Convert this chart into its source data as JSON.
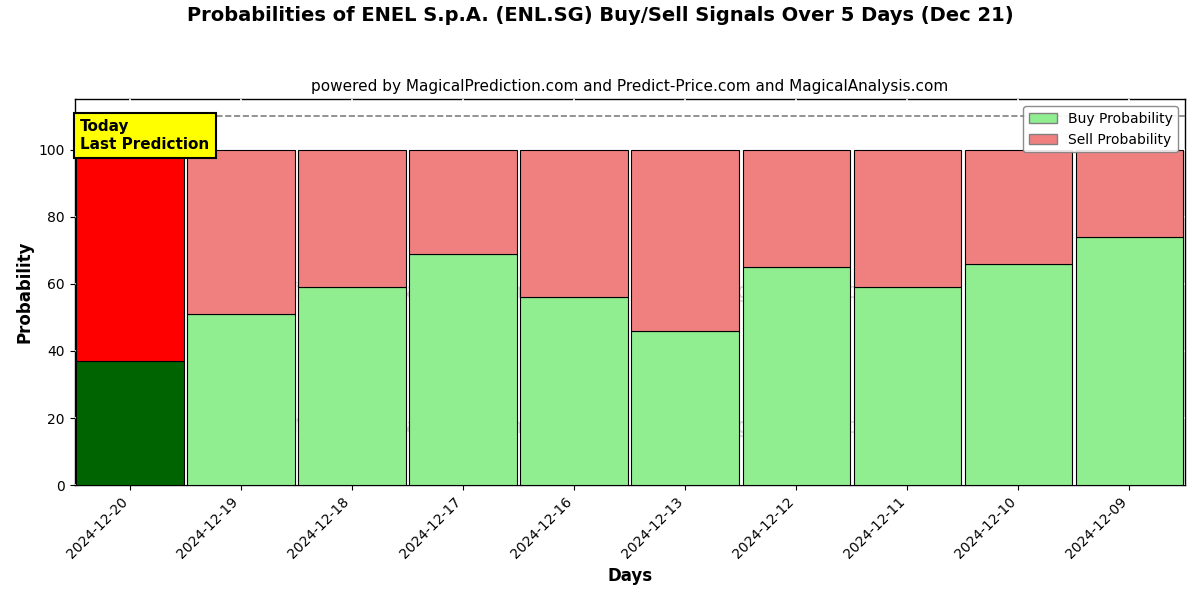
{
  "title": "Probabilities of ENEL S.p.A. (ENL.SG) Buy/Sell Signals Over 5 Days (Dec 21)",
  "subtitle": "powered by MagicalPrediction.com and Predict-Price.com and MagicalAnalysis.com",
  "xlabel": "Days",
  "ylabel": "Probability",
  "categories": [
    "2024-12-20",
    "2024-12-19",
    "2024-12-18",
    "2024-12-17",
    "2024-12-16",
    "2024-12-13",
    "2024-12-12",
    "2024-12-11",
    "2024-12-10",
    "2024-12-09"
  ],
  "buy_values": [
    37,
    51,
    59,
    69,
    56,
    46,
    65,
    59,
    66,
    74
  ],
  "sell_values": [
    63,
    49,
    41,
    31,
    44,
    54,
    35,
    41,
    34,
    26
  ],
  "today_buy_color": "#006400",
  "today_sell_color": "#FF0000",
  "other_buy_color": "#90EE90",
  "other_sell_color": "#F08080",
  "bar_edge_color": "#000000",
  "ylim": [
    0,
    115
  ],
  "dashed_line_y": 110,
  "legend_buy_label": "Buy Probability",
  "legend_sell_label": "Sell Probability",
  "today_label_text": "Today\nLast Prediction",
  "today_label_bg": "#FFFF00",
  "title_fontsize": 14,
  "subtitle_fontsize": 11,
  "axis_label_fontsize": 12,
  "tick_fontsize": 10,
  "background_color": "#FFFFFF",
  "plot_bg_color": "#FFFFFF",
  "figsize": [
    12,
    6
  ]
}
